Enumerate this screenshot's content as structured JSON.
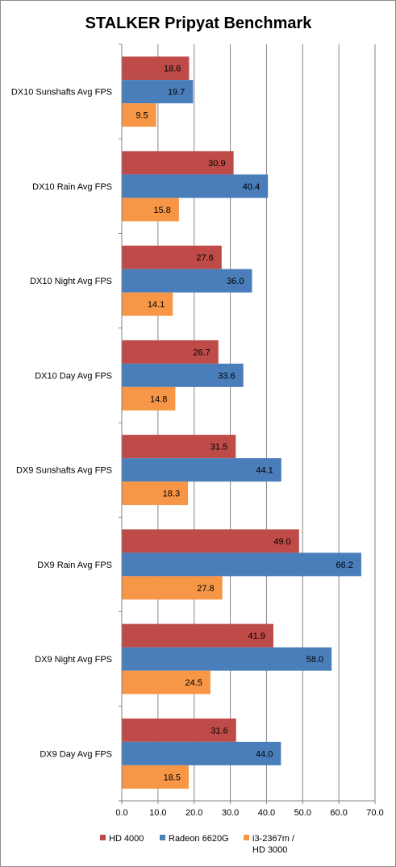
{
  "chart_data": {
    "type": "bar",
    "orientation": "horizontal",
    "title": "STALKER Pripyat Benchmark",
    "categories": [
      "DX10 Sunshafts Avg FPS",
      "DX10 Rain Avg FPS",
      "DX10 Night Avg FPS",
      "DX10 Day Avg FPS",
      "DX9 Sunshafts Avg FPS",
      "DX9 Rain Avg FPS",
      "DX9 Night Avg FPS",
      "DX9 Day Avg FPS"
    ],
    "series": [
      {
        "name": "HD 4000",
        "color": "#be4b48",
        "values": [
          18.6,
          30.9,
          27.6,
          26.7,
          31.5,
          49.0,
          41.9,
          31.6
        ]
      },
      {
        "name": "Radeon 6620G",
        "color": "#4a7ebb",
        "values": [
          19.7,
          40.4,
          36.0,
          33.6,
          44.1,
          66.2,
          58.0,
          44.0
        ]
      },
      {
        "name": "i3-2367m / HD 3000",
        "color": "#f79646",
        "values": [
          9.5,
          15.8,
          14.1,
          14.8,
          18.3,
          27.8,
          24.5,
          18.5
        ]
      }
    ],
    "x_ticks": [
      "0.0",
      "10.0",
      "20.0",
      "30.0",
      "40.0",
      "50.0",
      "60.0",
      "70.0"
    ],
    "xlim": [
      0,
      70
    ],
    "grid": true,
    "legend_position": "bottom"
  }
}
